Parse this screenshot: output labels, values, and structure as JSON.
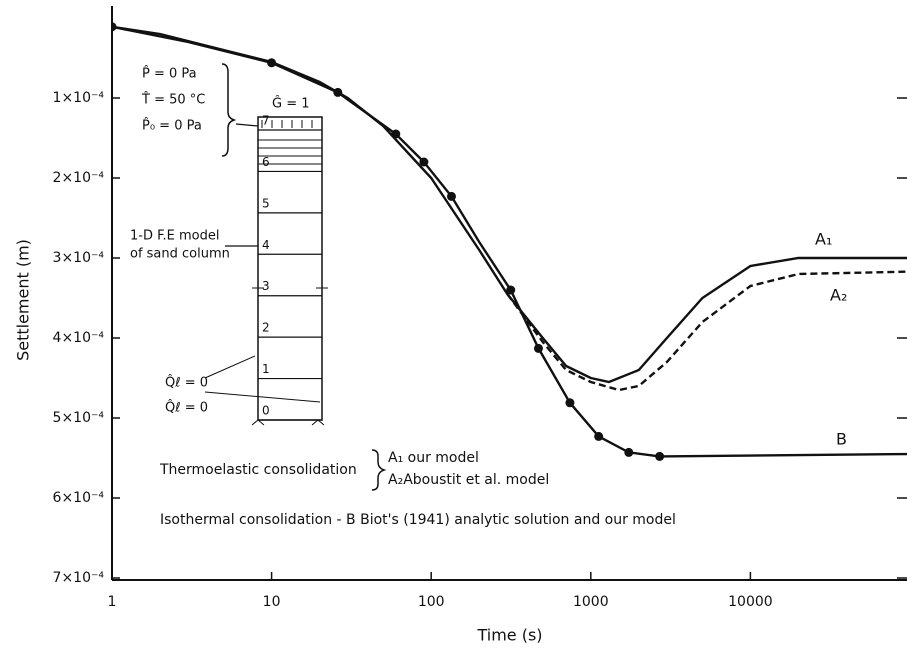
{
  "chart_data": {
    "type": "line",
    "x_label": "Time (s)",
    "y_label": "Settlement (m)",
    "x_log": true,
    "y_inverted": true,
    "xlim": [
      1,
      100000
    ],
    "xticks": [
      1,
      10,
      100,
      1000,
      10000
    ],
    "ylim": [
      0,
      0.0007
    ],
    "yticks": [
      {
        "value": 0.0001,
        "label": "1×10⁻⁴"
      },
      {
        "value": 0.0002,
        "label": "2×10⁻⁴"
      },
      {
        "value": 0.0003,
        "label": "3×10⁻⁴"
      },
      {
        "value": 0.0004,
        "label": "4×10⁻⁴"
      },
      {
        "value": 0.0005,
        "label": "5×10⁻⁴"
      },
      {
        "value": 0.0006,
        "label": "6×10⁻⁴"
      },
      {
        "value": 0.0007,
        "label": "7×10⁻⁴"
      }
    ],
    "series": [
      {
        "name": "A₁",
        "color": "#111111",
        "dash": false,
        "x": [
          1,
          2,
          5,
          10,
          20,
          30,
          50,
          100,
          200,
          300,
          500,
          700,
          1000,
          1300,
          2000,
          3000,
          5000,
          10000,
          20000,
          100000
        ],
        "values": [
          1.1e-05,
          2e-05,
          4e-05,
          5.5e-05,
          8e-05,
          0.0001,
          0.000135,
          0.0002,
          0.00029,
          0.000345,
          0.0004,
          0.000435,
          0.00045,
          0.000455,
          0.00044,
          0.0004,
          0.00035,
          0.00031,
          0.0003,
          0.0003
        ]
      },
      {
        "name": "A₂",
        "color": "#111111",
        "dash": true,
        "x": [
          300,
          500,
          700,
          1000,
          1500,
          2000,
          3000,
          5000,
          10000,
          20000,
          100000
        ],
        "values": [
          0.000345,
          0.000405,
          0.00044,
          0.000455,
          0.000465,
          0.00046,
          0.00043,
          0.00038,
          0.000335,
          0.00032,
          0.000317
        ]
      },
      {
        "name": "B",
        "color": "#111111",
        "dash": false,
        "x": [
          1,
          3,
          10,
          26,
          60,
          90,
          134,
          200,
          315,
          470,
          740,
          1120,
          1730,
          2700,
          10000,
          100000
        ],
        "values": [
          1.1e-05,
          3e-05,
          5.6e-05,
          9.3e-05,
          0.000145,
          0.00018,
          0.000223,
          0.00028,
          0.00034,
          0.000413,
          0.000481,
          0.000523,
          0.000543,
          0.000548,
          0.000547,
          0.000545
        ]
      }
    ],
    "points": {
      "x": [
        1,
        10,
        26,
        60,
        90,
        134,
        315,
        470,
        740,
        1120,
        1730,
        2700
      ],
      "values": [
        1.1e-05,
        5.6e-05,
        9.3e-05,
        0.000145,
        0.00018,
        0.000223,
        0.00034,
        0.000413,
        0.000481,
        0.000523,
        0.000543,
        0.000548
      ]
    },
    "annotations": {
      "p": "P̂ = 0 Pa",
      "t": "T̂ = 50 °C",
      "p0": "P̂₀ = 0 Pa",
      "g": "Ĝ = 1",
      "model1": "1-D F.E model",
      "model2": "of sand column",
      "q1": "Q̂ℓ = 0",
      "q2": "Q̂ℓ = 0",
      "thermo": "Thermoelastic consolidation",
      "a1": "A₁ our model",
      "a2": "A₂Aboustit et al. model",
      "iso": "Isothermal consolidation - B  Biot's (1941) analytic solution and our model"
    },
    "inset_levels": [
      0,
      1,
      2,
      3,
      4,
      5,
      6,
      7
    ]
  }
}
